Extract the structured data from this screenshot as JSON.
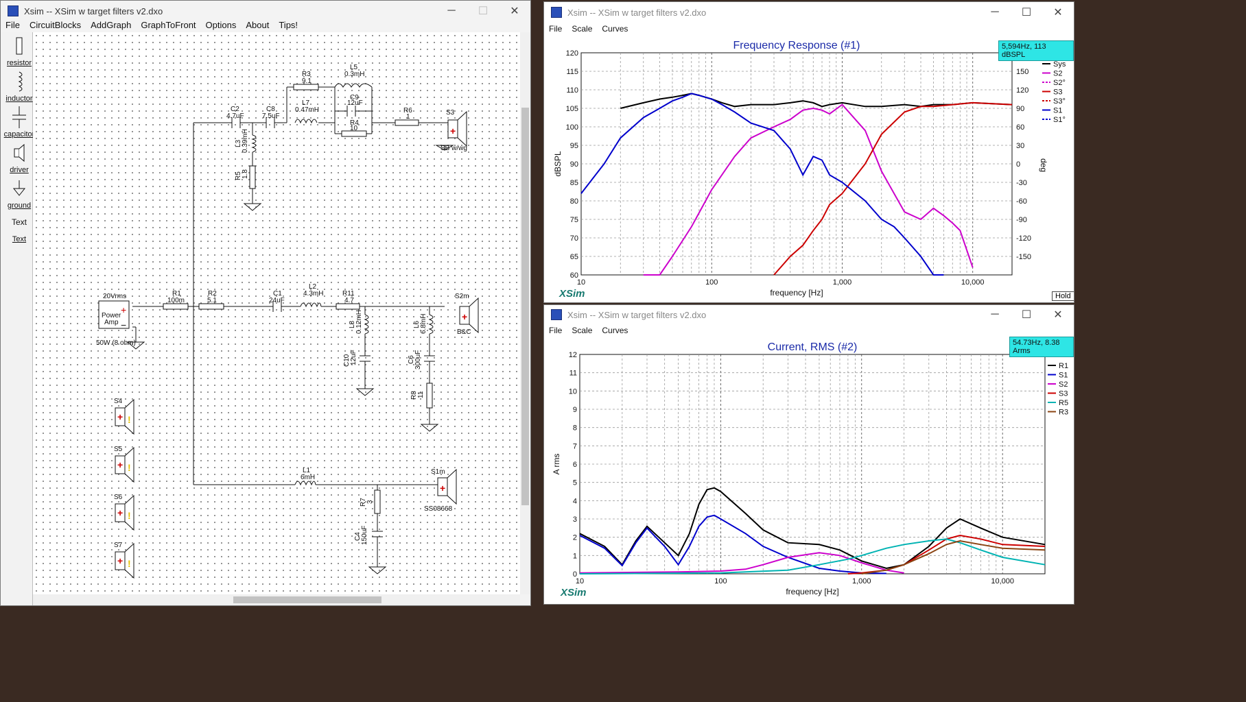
{
  "schematic_window": {
    "title": "Xsim -- XSim w target filters v2.dxo",
    "menu": [
      "File",
      "CircuitBlocks",
      "AddGraph",
      "GraphToFront",
      "Options",
      "About",
      "Tips!"
    ],
    "tools": [
      "resistor",
      "inductor",
      "capacitor",
      "driver",
      "ground",
      "Text",
      "Text"
    ],
    "components": {
      "source": {
        "value": "20Vrms",
        "line1": "Power",
        "line2": "Amp",
        "note": "50W (8 ohm)"
      },
      "R1": {
        "name": "R1",
        "value": "100m"
      },
      "R2": {
        "name": "R2",
        "value": "5.1"
      },
      "C1": {
        "name": "C1",
        "value": "24uF"
      },
      "L2": {
        "name": "L2",
        "value": "4.3mH"
      },
      "R11": {
        "name": "R11",
        "value": "4.7"
      },
      "S2m": {
        "name": "S2m",
        "note": "B&C"
      },
      "L8": {
        "name": "L8",
        "value": "0.12mH"
      },
      "C10": {
        "name": "C10",
        "value": "12uF"
      },
      "L6": {
        "name": "L6",
        "value": "6.8mH"
      },
      "C6": {
        "name": "C6",
        "value": "300uF"
      },
      "R8": {
        "name": "R8",
        "value": "11"
      },
      "C2": {
        "name": "C2",
        "value": "4.7uF"
      },
      "C8": {
        "name": "C8",
        "value": "7.5uF"
      },
      "L3": {
        "name": "L3",
        "value": "0.39mH"
      },
      "R5": {
        "name": "R5",
        "value": "1.8"
      },
      "R3": {
        "name": "R3",
        "value": "9.1"
      },
      "L7": {
        "name": "L7",
        "value": "0.47mH"
      },
      "L5": {
        "name": "L5",
        "value": "0.3mH"
      },
      "C9": {
        "name": "C9",
        "value": "12uF"
      },
      "R4": {
        "name": "R4",
        "value": "10"
      },
      "R6": {
        "name": "R6",
        "value": "1"
      },
      "S3": {
        "name": "S3",
        "note": "SB w/wg"
      },
      "L1": {
        "name": "L1",
        "value": "6mH"
      },
      "R7": {
        "name": "R7",
        "value": "3"
      },
      "C4": {
        "name": "C4",
        "value": "150uF"
      },
      "S1m": {
        "name": "S1m",
        "note": "SS08668"
      },
      "S4": {
        "name": "S4"
      },
      "S5": {
        "name": "S5"
      },
      "S6": {
        "name": "S6"
      },
      "S7": {
        "name": "S7"
      }
    }
  },
  "graph1_window": {
    "title": "Xsim -- XSim w target filters v2.dxo",
    "menu": [
      "File",
      "Scale",
      "Curves"
    ],
    "hold_button": "Hold",
    "readout": "5,594Hz, 113 dBSPL",
    "brand": "XSim",
    "behind_label": "XSim"
  },
  "graph2_window": {
    "title": "Xsim -- XSim w target filters v2.dxo",
    "menu": [
      "File",
      "Scale",
      "Curves"
    ],
    "readout": "54.73Hz, 8.38 Arms",
    "brand": "XSim"
  },
  "chart_data": [
    {
      "type": "line",
      "title": "Frequency Response (#1)",
      "xlabel": "frequency [Hz]",
      "ylabel": "dBSPL",
      "y2label": "deg",
      "x_scale": "log",
      "xlim": [
        10,
        20000
      ],
      "ylim": [
        60,
        120
      ],
      "y2lim": [
        -180,
        180
      ],
      "x_ticks": [
        "10",
        "100",
        "1,000",
        "10,000"
      ],
      "y_ticks": [
        60,
        65,
        70,
        75,
        80,
        85,
        90,
        95,
        100,
        105,
        110,
        115,
        120
      ],
      "y2_ticks": [
        -150,
        -120,
        -90,
        -60,
        -30,
        0,
        30,
        60,
        90,
        120,
        150,
        180
      ],
      "grid": true,
      "legend_position": "right",
      "series": [
        {
          "name": "Sys",
          "color": "#000000",
          "dash": false,
          "x": [
            20,
            30,
            40,
            50,
            60,
            70,
            80,
            100,
            120,
            150,
            200,
            300,
            400,
            500,
            600,
            700,
            800,
            1000,
            1500,
            2000,
            3000,
            4000,
            5000,
            7000,
            10000,
            20000
          ],
          "y": [
            105,
            106.5,
            107.5,
            108,
            108.5,
            109,
            108.5,
            107.5,
            106.5,
            105.5,
            106,
            106,
            106.5,
            107,
            106.5,
            105.5,
            106,
            106.5,
            105.5,
            105.5,
            106,
            105.5,
            106,
            106,
            106.5,
            106
          ]
        },
        {
          "name": "S2",
          "color": "#cc00cc",
          "dash": false,
          "x": [
            30,
            40,
            50,
            70,
            100,
            150,
            200,
            300,
            400,
            500,
            600,
            700,
            800,
            1000,
            1500,
            2000,
            3000,
            4000,
            5000,
            6000,
            7000,
            8000,
            10000
          ],
          "y": [
            55,
            60,
            65,
            73,
            83,
            92,
            97,
            100,
            102,
            104.5,
            105,
            104.5,
            103.5,
            106,
            99,
            88,
            77,
            75,
            78,
            76,
            74,
            72,
            62
          ]
        },
        {
          "name": "S2°",
          "color": "#cc00cc",
          "dash": true,
          "x": [],
          "y": []
        },
        {
          "name": "S3",
          "color": "#cc0000",
          "dash": false,
          "x": [
            300,
            400,
            500,
            600,
            700,
            800,
            1000,
            1500,
            2000,
            3000,
            4000,
            5000,
            7000,
            10000,
            20000
          ],
          "y": [
            60,
            65,
            68,
            72,
            75,
            79,
            82,
            90,
            98,
            104,
            105.5,
            105.5,
            106,
            106.5,
            106
          ]
        },
        {
          "name": "S3°",
          "color": "#cc0000",
          "dash": true,
          "x": [],
          "y": []
        },
        {
          "name": "S1",
          "color": "#0000cc",
          "dash": false,
          "x": [
            10,
            15,
            20,
            30,
            40,
            50,
            60,
            70,
            80,
            100,
            120,
            150,
            200,
            300,
            400,
            500,
            600,
            700,
            800,
            1000,
            1500,
            2000,
            2500,
            3000,
            4000,
            5000,
            6000
          ],
          "y": [
            82,
            90,
            97,
            102.5,
            105,
            107,
            108,
            109,
            108.5,
            107.5,
            106,
            104,
            101,
            99,
            94,
            87,
            92,
            91,
            87,
            85,
            80,
            75,
            73,
            70,
            65,
            58,
            55
          ]
        },
        {
          "name": "S1°",
          "color": "#0000cc",
          "dash": true,
          "x": [],
          "y": []
        }
      ]
    },
    {
      "type": "line",
      "title": "Current, RMS (#2)",
      "xlabel": "frequency [Hz]",
      "ylabel": "A rms",
      "x_scale": "log",
      "xlim": [
        10,
        20000
      ],
      "ylim": [
        0,
        12
      ],
      "x_ticks": [
        "10",
        "100",
        "1,000",
        "10,000"
      ],
      "y_ticks": [
        0,
        1,
        2,
        3,
        4,
        5,
        6,
        7,
        8,
        9,
        10,
        11,
        12
      ],
      "grid": true,
      "legend_position": "right",
      "series": [
        {
          "name": "R1",
          "color": "#000000",
          "x": [
            10,
            15,
            20,
            25,
            30,
            40,
            50,
            60,
            70,
            80,
            90,
            100,
            150,
            200,
            300,
            500,
            700,
            1000,
            1500,
            2000,
            3000,
            4000,
            5000,
            7000,
            10000,
            20000
          ],
          "y": [
            2.2,
            1.5,
            0.5,
            1.8,
            2.6,
            1.7,
            1.0,
            2.2,
            3.8,
            4.6,
            4.7,
            4.5,
            3.3,
            2.4,
            1.7,
            1.6,
            1.3,
            0.7,
            0.3,
            0.5,
            1.5,
            2.5,
            3.0,
            2.5,
            2.0,
            1.6
          ]
        },
        {
          "name": "S1",
          "color": "#0000cc",
          "x": [
            10,
            15,
            20,
            25,
            30,
            40,
            50,
            60,
            70,
            80,
            90,
            100,
            150,
            200,
            300,
            500,
            700,
            1000,
            1500
          ],
          "y": [
            2.1,
            1.4,
            0.45,
            1.7,
            2.5,
            1.5,
            0.5,
            1.5,
            2.6,
            3.1,
            3.2,
            3.0,
            2.2,
            1.5,
            0.9,
            0.3,
            0.15,
            0.05,
            0.02
          ]
        },
        {
          "name": "S2",
          "color": "#cc00cc",
          "x": [
            10,
            50,
            100,
            150,
            200,
            300,
            500,
            700,
            1000,
            1500,
            2000
          ],
          "y": [
            0.05,
            0.1,
            0.15,
            0.25,
            0.5,
            0.9,
            1.15,
            1.0,
            0.6,
            0.2,
            0.05
          ]
        },
        {
          "name": "S3",
          "color": "#cc0000",
          "x": [
            800,
            1000,
            1500,
            2000,
            3000,
            4000,
            5000,
            7000,
            10000,
            20000
          ],
          "y": [
            0,
            0.05,
            0.2,
            0.5,
            1.3,
            1.9,
            2.1,
            1.9,
            1.6,
            1.5
          ]
        },
        {
          "name": "R5",
          "color": "#00b3b3",
          "x": [
            10,
            100,
            300,
            500,
            800,
            1000,
            1500,
            2000,
            3000,
            4000,
            5000,
            7000,
            10000,
            20000
          ],
          "y": [
            0,
            0.05,
            0.2,
            0.5,
            0.8,
            1.0,
            1.4,
            1.6,
            1.8,
            1.9,
            1.7,
            1.3,
            0.9,
            0.5
          ]
        },
        {
          "name": "R3",
          "color": "#8b4513",
          "x": [
            1000,
            1500,
            2000,
            3000,
            4000,
            5000,
            7000,
            10000,
            20000
          ],
          "y": [
            0,
            0.2,
            0.5,
            1.1,
            1.6,
            1.8,
            1.6,
            1.4,
            1.3
          ]
        }
      ]
    }
  ]
}
